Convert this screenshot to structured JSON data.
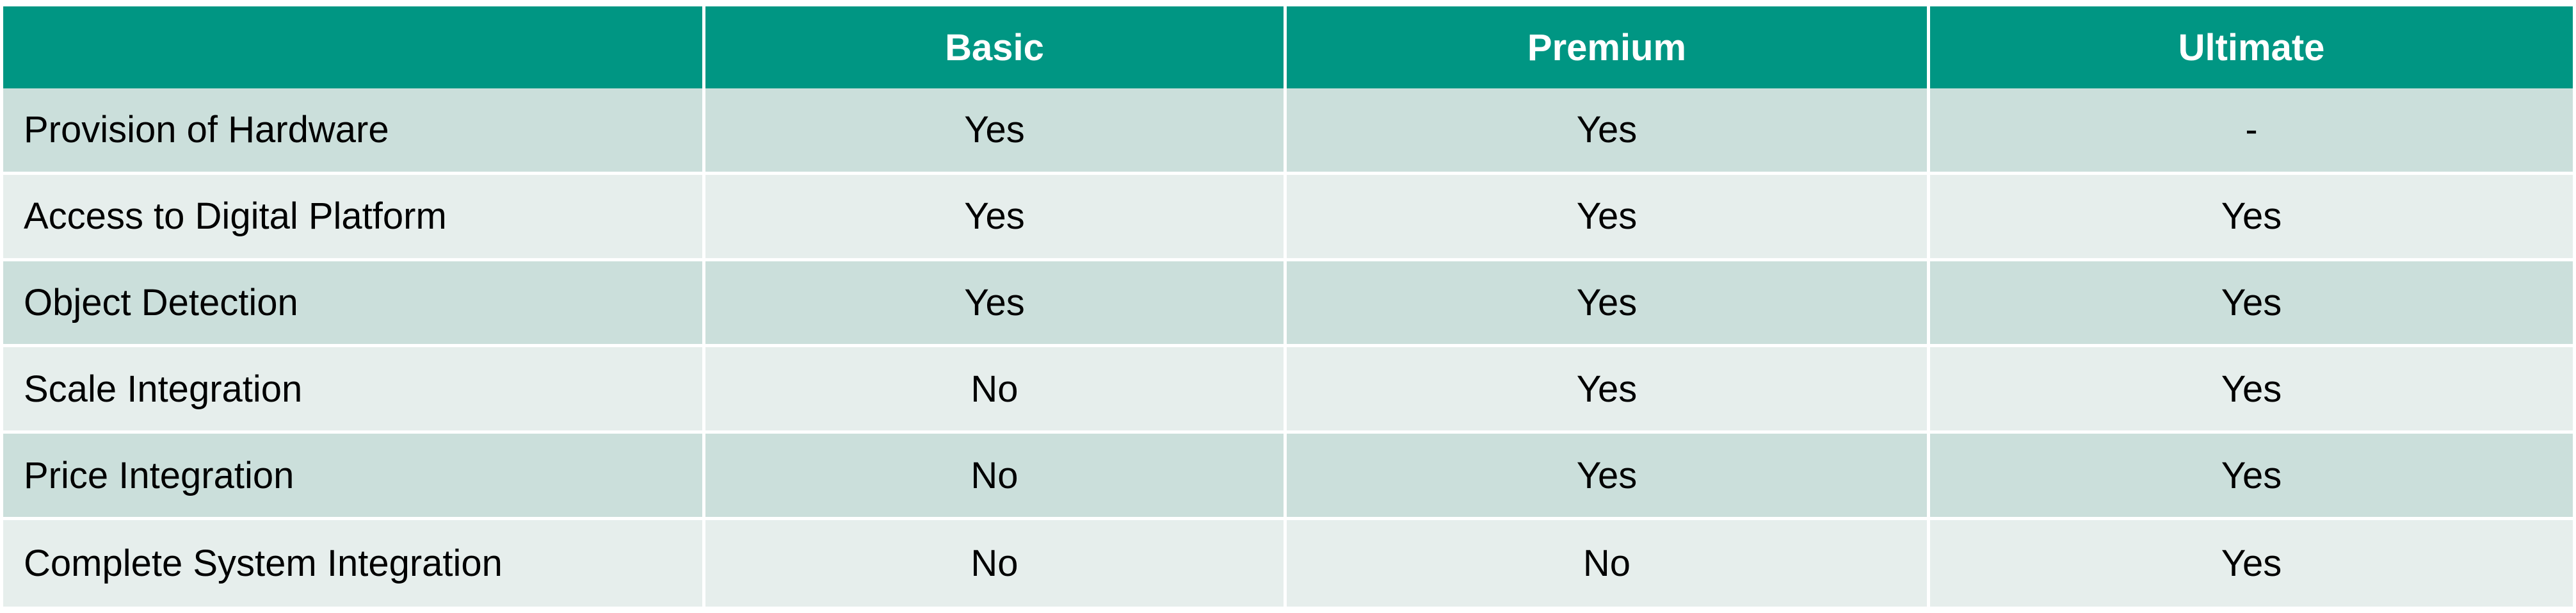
{
  "colors": {
    "header_bg": "#009683",
    "header_text": "#ffffff",
    "row_odd_bg": "#cbdfdb",
    "row_even_bg": "#e6eeec",
    "cell_text": "#000000",
    "divider": "#ffffff"
  },
  "table": {
    "header": [
      "",
      "Basic",
      "Premium",
      "Ultimate"
    ],
    "rows": [
      {
        "feature": "Provision of Hardware",
        "basic": "Yes",
        "premium": "Yes",
        "ultimate": "-"
      },
      {
        "feature": "Access to Digital Platform",
        "basic": "Yes",
        "premium": "Yes",
        "ultimate": "Yes"
      },
      {
        "feature": "Object Detection",
        "basic": "Yes",
        "premium": "Yes",
        "ultimate": "Yes"
      },
      {
        "feature": "Scale Integration",
        "basic": "No",
        "premium": "Yes",
        "ultimate": "Yes"
      },
      {
        "feature": "Price Integration",
        "basic": "No",
        "premium": "Yes",
        "ultimate": "Yes"
      },
      {
        "feature": "Complete System Integration",
        "basic": "No",
        "premium": "No",
        "ultimate": "Yes"
      }
    ]
  }
}
